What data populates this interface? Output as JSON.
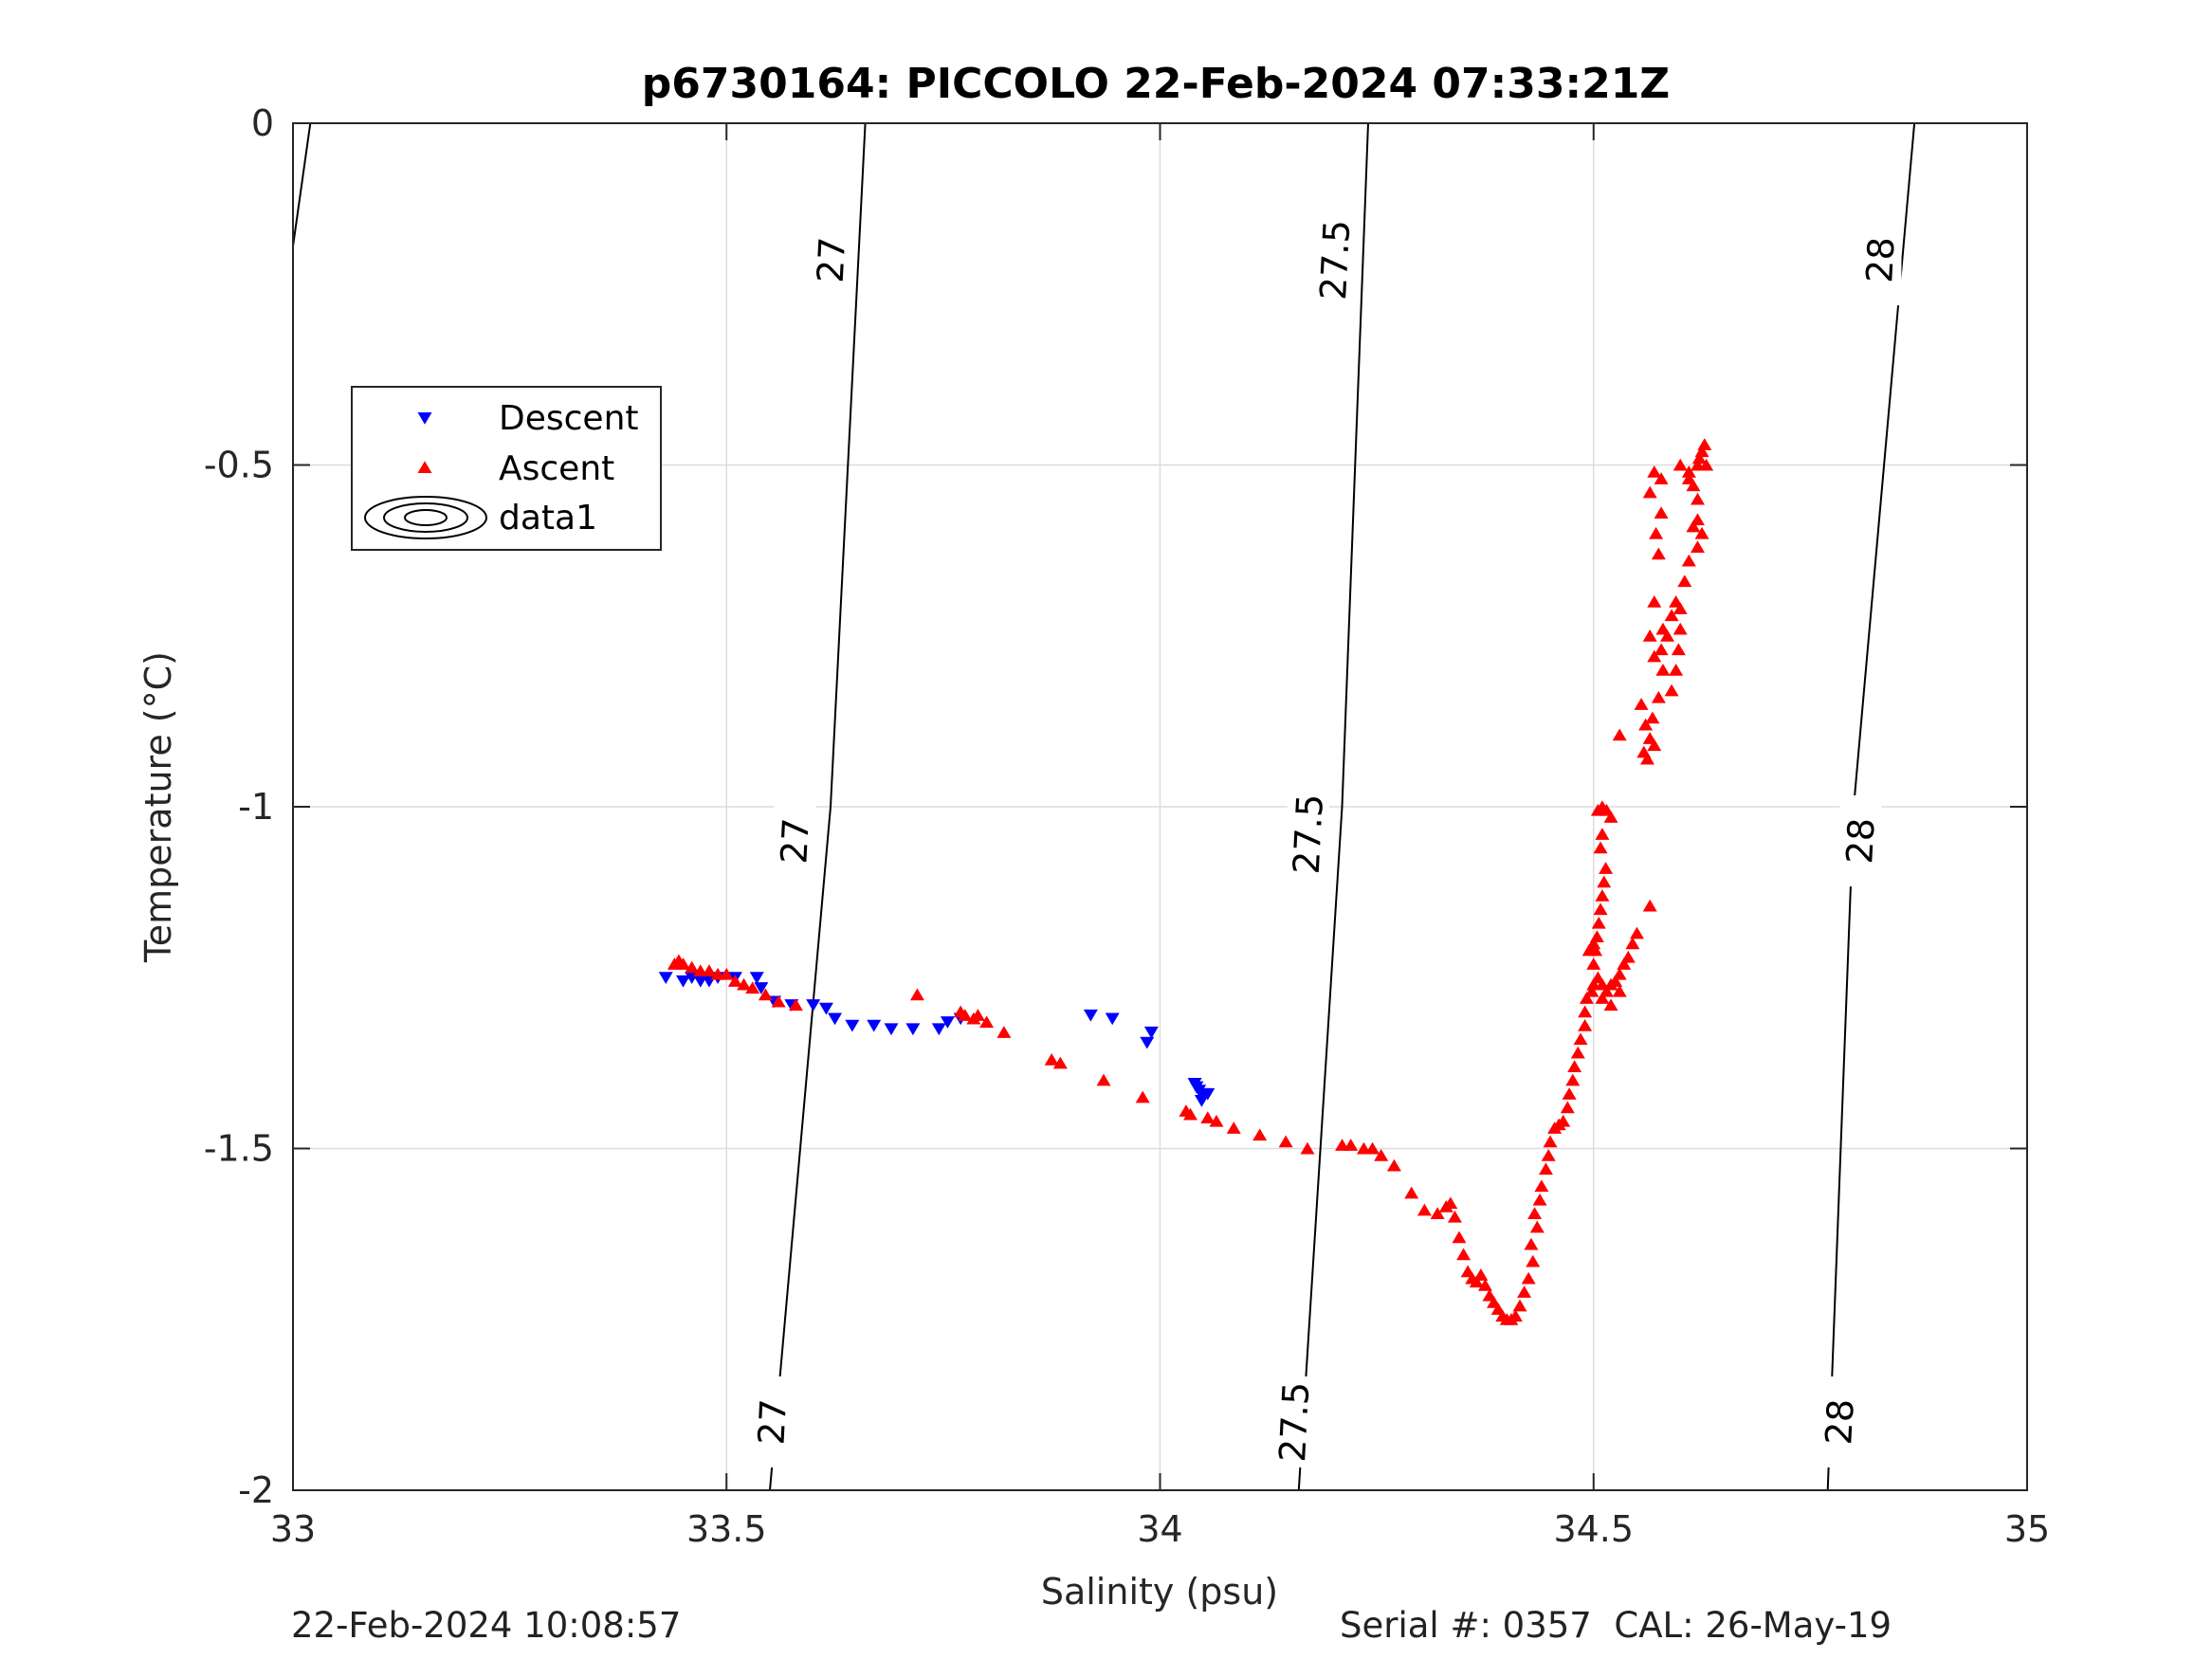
{
  "chart_data": {
    "type": "scatter",
    "title": "p6730164: PICCOLO 22-Feb-2024 07:33:21Z",
    "xlabel": "Salinity (psu)",
    "ylabel": "Temperature (°C)",
    "xlim": [
      33,
      35
    ],
    "ylim": [
      -2,
      0
    ],
    "xticks": [
      33,
      33.5,
      34,
      34.5,
      35
    ],
    "xtick_labels": [
      "33",
      "33.5",
      "34",
      "34.5",
      "35"
    ],
    "yticks": [
      -2,
      -1.5,
      -1,
      -0.5,
      0
    ],
    "ytick_labels": [
      "-2",
      "-1.5",
      "-1",
      "-0.5",
      "0"
    ],
    "grid": true,
    "legend_position": "upper-left",
    "legend": [
      {
        "label": "Descent",
        "marker": "triangle-down",
        "color": "#0000ff"
      },
      {
        "label": "Ascent",
        "marker": "triangle-up",
        "color": "#ff0000"
      },
      {
        "label": "data1",
        "marker": "contour",
        "color": "#000000"
      }
    ],
    "series": [
      {
        "name": "Descent",
        "marker": "triangle-down",
        "color": "#0000ff",
        "points": [
          [
            33.43,
            -1.25
          ],
          [
            33.45,
            -1.255
          ],
          [
            33.46,
            -1.25
          ],
          [
            33.47,
            -1.255
          ],
          [
            33.48,
            -1.255
          ],
          [
            33.49,
            -1.25
          ],
          [
            33.51,
            -1.25
          ],
          [
            33.535,
            -1.25
          ],
          [
            33.54,
            -1.265
          ],
          [
            33.555,
            -1.285
          ],
          [
            33.575,
            -1.29
          ],
          [
            33.6,
            -1.29
          ],
          [
            33.615,
            -1.295
          ],
          [
            33.625,
            -1.31
          ],
          [
            33.645,
            -1.32
          ],
          [
            33.67,
            -1.32
          ],
          [
            33.69,
            -1.325
          ],
          [
            33.715,
            -1.325
          ],
          [
            33.745,
            -1.325
          ],
          [
            33.755,
            -1.315
          ],
          [
            33.77,
            -1.31
          ],
          [
            33.92,
            -1.305
          ],
          [
            33.945,
            -1.31
          ],
          [
            33.985,
            -1.345
          ],
          [
            33.99,
            -1.33
          ],
          [
            34.04,
            -1.405
          ],
          [
            34.045,
            -1.415
          ],
          [
            34.05,
            -1.42
          ],
          [
            34.055,
            -1.42
          ],
          [
            34.048,
            -1.43
          ],
          [
            34.042,
            -1.41
          ]
        ]
      },
      {
        "name": "Ascent",
        "marker": "triangle-up",
        "color": "#ff0000",
        "points": [
          [
            33.44,
            -1.23
          ],
          [
            33.445,
            -1.225
          ],
          [
            33.45,
            -1.23
          ],
          [
            33.46,
            -1.235
          ],
          [
            33.47,
            -1.24
          ],
          [
            33.48,
            -1.24
          ],
          [
            33.49,
            -1.245
          ],
          [
            33.5,
            -1.245
          ],
          [
            33.51,
            -1.255
          ],
          [
            33.52,
            -1.26
          ],
          [
            33.53,
            -1.265
          ],
          [
            33.545,
            -1.275
          ],
          [
            33.56,
            -1.285
          ],
          [
            33.58,
            -1.29
          ],
          [
            33.72,
            -1.275
          ],
          [
            33.77,
            -1.3
          ],
          [
            33.775,
            -1.305
          ],
          [
            33.785,
            -1.31
          ],
          [
            33.79,
            -1.305
          ],
          [
            33.8,
            -1.315
          ],
          [
            33.82,
            -1.33
          ],
          [
            33.875,
            -1.37
          ],
          [
            33.885,
            -1.375
          ],
          [
            33.935,
            -1.4
          ],
          [
            33.98,
            -1.425
          ],
          [
            34.03,
            -1.445
          ],
          [
            34.035,
            -1.45
          ],
          [
            34.055,
            -1.455
          ],
          [
            34.065,
            -1.46
          ],
          [
            34.085,
            -1.47
          ],
          [
            34.115,
            -1.48
          ],
          [
            34.145,
            -1.49
          ],
          [
            34.17,
            -1.5
          ],
          [
            34.21,
            -1.495
          ],
          [
            34.22,
            -1.495
          ],
          [
            34.235,
            -1.5
          ],
          [
            34.245,
            -1.5
          ],
          [
            34.255,
            -1.51
          ],
          [
            34.27,
            -1.525
          ],
          [
            34.29,
            -1.565
          ],
          [
            34.305,
            -1.59
          ],
          [
            34.32,
            -1.595
          ],
          [
            34.33,
            -1.585
          ],
          [
            34.335,
            -1.58
          ],
          [
            34.34,
            -1.6
          ],
          [
            34.345,
            -1.63
          ],
          [
            34.35,
            -1.655
          ],
          [
            34.355,
            -1.68
          ],
          [
            34.36,
            -1.69
          ],
          [
            34.365,
            -1.695
          ],
          [
            34.37,
            -1.685
          ],
          [
            34.375,
            -1.7
          ],
          [
            34.38,
            -1.715
          ],
          [
            34.385,
            -1.725
          ],
          [
            34.39,
            -1.735
          ],
          [
            34.395,
            -1.745
          ],
          [
            34.4,
            -1.75
          ],
          [
            34.405,
            -1.75
          ],
          [
            34.41,
            -1.745
          ],
          [
            34.415,
            -1.73
          ],
          [
            34.42,
            -1.71
          ],
          [
            34.425,
            -1.69
          ],
          [
            34.43,
            -1.665
          ],
          [
            34.428,
            -1.64
          ],
          [
            34.435,
            -1.615
          ],
          [
            34.432,
            -1.595
          ],
          [
            34.438,
            -1.575
          ],
          [
            34.44,
            -1.555
          ],
          [
            34.445,
            -1.53
          ],
          [
            34.448,
            -1.51
          ],
          [
            34.45,
            -1.49
          ],
          [
            34.455,
            -1.47
          ],
          [
            34.46,
            -1.465
          ],
          [
            34.465,
            -1.46
          ],
          [
            34.47,
            -1.44
          ],
          [
            34.472,
            -1.42
          ],
          [
            34.476,
            -1.4
          ],
          [
            34.478,
            -1.38
          ],
          [
            34.482,
            -1.36
          ],
          [
            34.485,
            -1.34
          ],
          [
            34.49,
            -1.32
          ],
          [
            34.49,
            -1.3
          ],
          [
            34.492,
            -1.28
          ],
          [
            34.498,
            -1.27
          ],
          [
            34.5,
            -1.26
          ],
          [
            34.505,
            -1.25
          ],
          [
            34.51,
            -1.26
          ],
          [
            34.515,
            -1.27
          ],
          [
            34.52,
            -1.26
          ],
          [
            34.525,
            -1.255
          ],
          [
            34.53,
            -1.245
          ],
          [
            34.535,
            -1.23
          ],
          [
            34.54,
            -1.22
          ],
          [
            34.545,
            -1.2
          ],
          [
            34.55,
            -1.185
          ],
          [
            34.565,
            -1.145
          ],
          [
            34.5,
            -1.23
          ],
          [
            34.502,
            -1.21
          ],
          [
            34.504,
            -1.19
          ],
          [
            34.506,
            -1.17
          ],
          [
            34.508,
            -1.15
          ],
          [
            34.51,
            -1.13
          ],
          [
            34.512,
            -1.11
          ],
          [
            34.514,
            -1.09
          ],
          [
            34.508,
            -1.06
          ],
          [
            34.51,
            -1.04
          ],
          [
            34.505,
            -1.005
          ],
          [
            34.51,
            -1.0
          ],
          [
            34.515,
            -1.005
          ],
          [
            34.52,
            -1.015
          ],
          [
            34.5,
            -1.2
          ],
          [
            34.495,
            -1.21
          ],
          [
            34.51,
            -1.28
          ],
          [
            34.52,
            -1.29
          ],
          [
            34.53,
            -1.27
          ],
          [
            34.53,
            -0.895
          ],
          [
            34.555,
            -0.85
          ],
          [
            34.56,
            -0.88
          ],
          [
            34.565,
            -0.9
          ],
          [
            34.558,
            -0.92
          ],
          [
            34.562,
            -0.93
          ],
          [
            34.57,
            -0.91
          ],
          [
            34.568,
            -0.87
          ],
          [
            34.575,
            -0.84
          ],
          [
            34.58,
            -0.8
          ],
          [
            34.578,
            -0.77
          ],
          [
            34.585,
            -0.75
          ],
          [
            34.59,
            -0.72
          ],
          [
            34.595,
            -0.7
          ],
          [
            34.6,
            -0.71
          ],
          [
            34.6,
            -0.74
          ],
          [
            34.598,
            -0.77
          ],
          [
            34.595,
            -0.8
          ],
          [
            34.59,
            -0.83
          ],
          [
            34.57,
            -0.78
          ],
          [
            34.565,
            -0.75
          ],
          [
            34.57,
            -0.7
          ],
          [
            34.58,
            -0.74
          ],
          [
            34.575,
            -0.63
          ],
          [
            34.572,
            -0.6
          ],
          [
            34.578,
            -0.57
          ],
          [
            34.565,
            -0.54
          ],
          [
            34.57,
            -0.51
          ],
          [
            34.578,
            -0.52
          ],
          [
            34.61,
            -0.51
          ],
          [
            34.615,
            -0.53
          ],
          [
            34.62,
            -0.55
          ],
          [
            34.62,
            -0.58
          ],
          [
            34.615,
            -0.59
          ],
          [
            34.625,
            -0.6
          ],
          [
            34.62,
            -0.62
          ],
          [
            34.61,
            -0.64
          ],
          [
            34.605,
            -0.67
          ],
          [
            34.62,
            -0.5
          ],
          [
            34.625,
            -0.48
          ],
          [
            34.628,
            -0.47
          ],
          [
            34.622,
            -0.49
          ],
          [
            34.63,
            -0.5
          ],
          [
            34.6,
            -0.5
          ],
          [
            34.61,
            -0.52
          ]
        ]
      }
    ],
    "contours": [
      {
        "label": "27",
        "points": [
          [
            33.66,
            0
          ],
          [
            33.62,
            -1.0
          ],
          [
            33.55,
            -2
          ]
        ],
        "label_positions": [
          [
            33.621,
            -0.2
          ],
          [
            33.579,
            -1.05
          ],
          [
            33.553,
            -1.9
          ]
        ]
      },
      {
        "label": "27.5",
        "points": [
          [
            34.24,
            0
          ],
          [
            34.21,
            -1.0
          ],
          [
            34.16,
            -2
          ]
        ],
        "label_positions": [
          [
            34.202,
            -0.2
          ],
          [
            34.171,
            -1.04
          ],
          [
            34.155,
            -1.9
          ]
        ]
      },
      {
        "label": "28",
        "points": [
          [
            34.87,
            0
          ],
          [
            34.8,
            -1.0
          ],
          [
            34.77,
            -2
          ]
        ],
        "label_positions": [
          [
            34.831,
            -0.2
          ],
          [
            34.808,
            -1.05
          ],
          [
            34.784,
            -1.9
          ]
        ]
      },
      {
        "label": "",
        "points": [
          [
            33.02,
            0
          ],
          [
            33.0,
            -0.18
          ]
        ],
        "label_positions": []
      }
    ]
  },
  "footer": {
    "timestamp": "22-Feb-2024 10:08:57",
    "serial": "Serial #: 0357  CAL: 26-May-19"
  }
}
